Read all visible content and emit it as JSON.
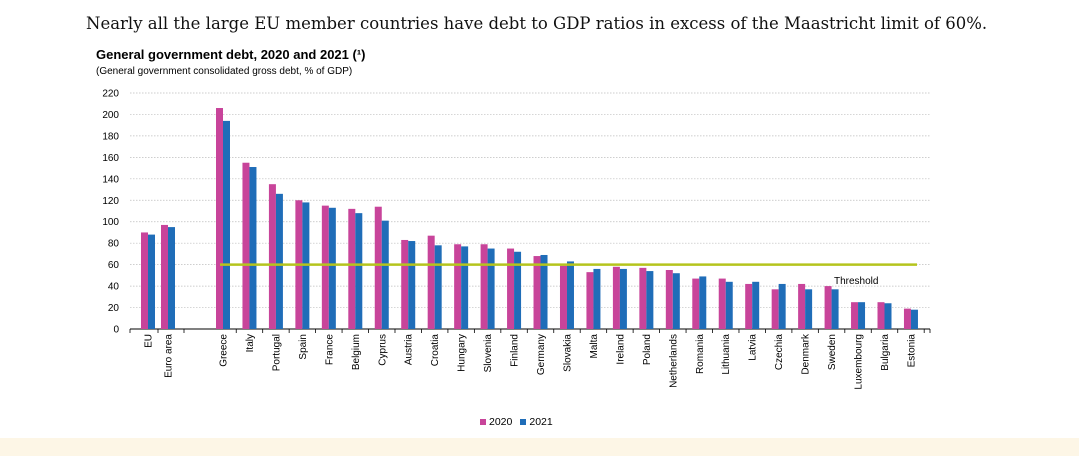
{
  "caption": "Nearly all the large EU member countries have debt to GDP ratios in excess of the Maastricht limit of 60%.",
  "chart_data": {
    "type": "bar",
    "title": "General government debt, 2020 and 2021 (¹)",
    "subtitle": "(General  government  consolidated  gross  debt,  % of GDP)",
    "categories": [
      "EU",
      "Euro area",
      "Greece",
      "Italy",
      "Portugal",
      "Spain",
      "France",
      "Belgium",
      "Cyprus",
      "Austria",
      "Croatia",
      "Hungary",
      "Slovenia",
      "Finland",
      "Germany",
      "Slovakia",
      "Malta",
      "Ireland",
      "Poland",
      "Netherlands",
      "Romania",
      "Lithuania",
      "Latvia",
      "Czechia",
      "Denmark",
      "Sweden",
      "Luxembourg",
      "Bulgaria",
      "Estonia"
    ],
    "series": [
      {
        "name": "2020",
        "color": "#c8449a",
        "values": [
          90,
          97,
          206,
          155,
          135,
          120,
          115,
          112,
          114,
          83,
          87,
          79,
          79,
          75,
          68,
          59,
          53,
          58,
          57,
          55,
          47,
          47,
          42,
          37,
          42,
          40,
          25,
          25,
          19
        ]
      },
      {
        "name": "2021",
        "color": "#1f6db8",
        "values": [
          88,
          95,
          194,
          151,
          126,
          118,
          113,
          108,
          101,
          82,
          78,
          77,
          75,
          72,
          69,
          63,
          56,
          56,
          54,
          52,
          49,
          44,
          44,
          42,
          37,
          37,
          25,
          24,
          18
        ]
      }
    ],
    "ylim": [
      0,
      220
    ],
    "yticks": [
      0,
      20,
      40,
      60,
      80,
      100,
      120,
      140,
      160,
      180,
      200,
      220
    ],
    "grid": true,
    "threshold": {
      "value": 60,
      "label": "Threshold",
      "color": "#b5c41d"
    },
    "legend_position": "bottom-center"
  }
}
